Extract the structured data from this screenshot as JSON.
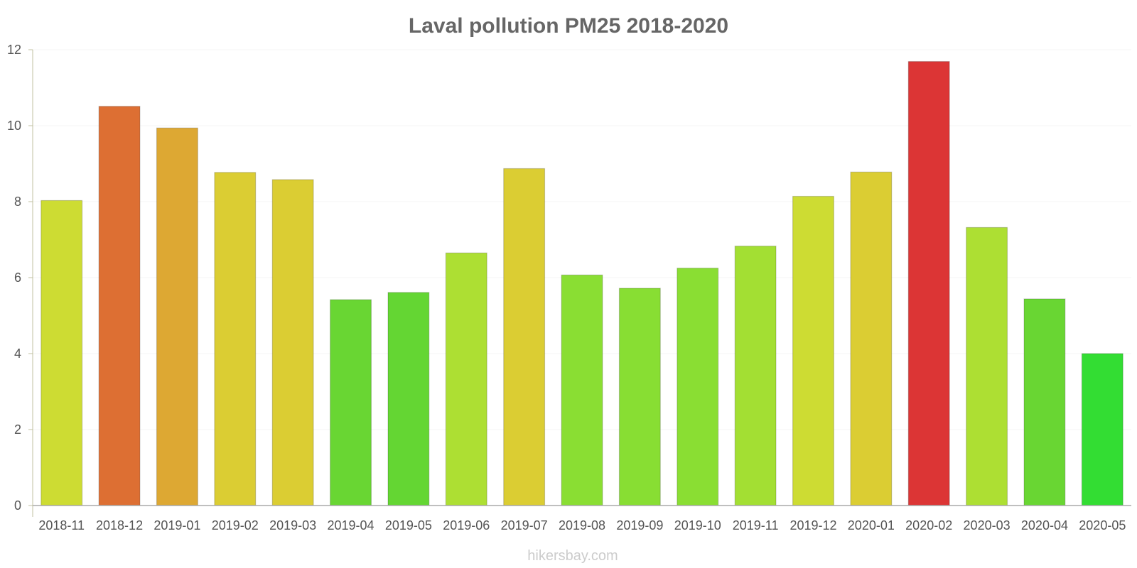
{
  "chart_data": {
    "type": "bar",
    "title": "Laval pollution PM25 2018-2020",
    "categories": [
      "2018-11",
      "2018-12",
      "2019-01",
      "2019-02",
      "2019-03",
      "2019-04",
      "2019-05",
      "2019-06",
      "2019-07",
      "2019-08",
      "2019-09",
      "2019-10",
      "2019-11",
      "2019-12",
      "2020-01",
      "2020-02",
      "2020-03",
      "2020-04",
      "2020-05"
    ],
    "values": [
      8.03,
      10.51,
      9.94,
      8.77,
      8.58,
      5.42,
      5.61,
      6.65,
      8.87,
      6.07,
      5.72,
      6.25,
      6.83,
      8.14,
      8.78,
      11.69,
      7.32,
      5.44,
      4.0
    ],
    "colors": [
      "#cddc33",
      "#dd6f33",
      "#dda833",
      "#dbcd33",
      "#dbcd33",
      "#69d633",
      "#64d633",
      "#addf33",
      "#dbcd33",
      "#8ade33",
      "#88de33",
      "#8ade33",
      "#a3df33",
      "#cddc33",
      "#dbcd33",
      "#dc3535",
      "#addf33",
      "#69d633",
      "#33dd33"
    ],
    "ylim": [
      0,
      12
    ],
    "yticks": [
      0,
      2,
      4,
      6,
      8,
      10,
      12
    ],
    "xlabel": "",
    "ylabel": "",
    "grid": true
  },
  "credit": "hikersbay.com"
}
